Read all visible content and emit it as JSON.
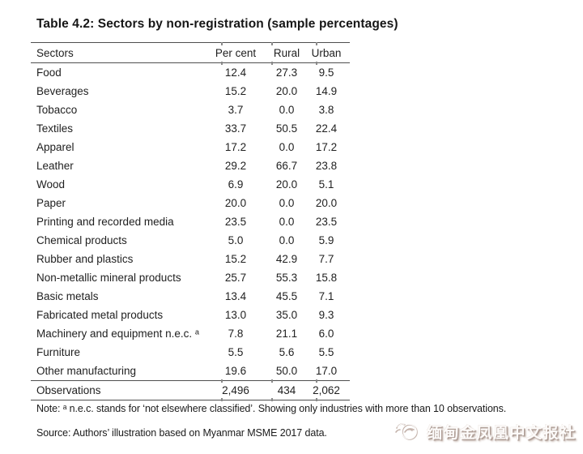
{
  "title": "Table 4.2: Sectors by non-registration (sample percentages)",
  "table": {
    "columns": [
      "Sectors",
      "Per cent",
      "Rural",
      "Urban"
    ],
    "rows": [
      {
        "sector": "Food",
        "per_cent": "12.4",
        "rural": "27.3",
        "urban": "9.5"
      },
      {
        "sector": "Beverages",
        "per_cent": "15.2",
        "rural": "20.0",
        "urban": "14.9"
      },
      {
        "sector": "Tobacco",
        "per_cent": "3.7",
        "rural": "0.0",
        "urban": "3.8"
      },
      {
        "sector": "Textiles",
        "per_cent": "33.7",
        "rural": "50.5",
        "urban": "22.4"
      },
      {
        "sector": "Apparel",
        "per_cent": "17.2",
        "rural": "0.0",
        "urban": "17.2"
      },
      {
        "sector": "Leather",
        "per_cent": "29.2",
        "rural": "66.7",
        "urban": "23.8"
      },
      {
        "sector": "Wood",
        "per_cent": "6.9",
        "rural": "20.0",
        "urban": "5.1"
      },
      {
        "sector": "Paper",
        "per_cent": "20.0",
        "rural": "0.0",
        "urban": "20.0"
      },
      {
        "sector": "Printing and recorded media",
        "per_cent": "23.5",
        "rural": "0.0",
        "urban": "23.5"
      },
      {
        "sector": "Chemical products",
        "per_cent": "5.0",
        "rural": "0.0",
        "urban": "5.9"
      },
      {
        "sector": "Rubber and plastics",
        "per_cent": "15.2",
        "rural": "42.9",
        "urban": "7.7"
      },
      {
        "sector": "Non-metallic mineral products",
        "per_cent": "25.7",
        "rural": "55.3",
        "urban": "15.8"
      },
      {
        "sector": "Basic metals",
        "per_cent": "13.4",
        "rural": "45.5",
        "urban": "7.1"
      },
      {
        "sector": "Fabricated metal products",
        "per_cent": "13.0",
        "rural": "35.0",
        "urban": "9.3"
      },
      {
        "sector": "Machinery and equipment n.e.c. ᵃ",
        "per_cent": "7.8",
        "rural": "21.1",
        "urban": "6.0"
      },
      {
        "sector": "Furniture",
        "per_cent": "5.5",
        "rural": "5.6",
        "urban": "5.5"
      },
      {
        "sector": "Other manufacturing",
        "per_cent": "19.6",
        "rural": "50.0",
        "urban": "17.0"
      }
    ],
    "summary_row": {
      "sector": "Observations",
      "per_cent": "2,496",
      "rural": "434",
      "urban": "2,062"
    }
  },
  "note": "Note: ᵃ n.e.c. stands for ‘not elsewhere classified’. Showing only industries with more than 10 observations.",
  "source": "Source: Authors’ illustration based on Myanmar MSME 2017 data.",
  "watermark": {
    "text": "缅甸金凤凰中文报社",
    "icon": "phoenix-bird-icon"
  },
  "colors": {
    "rule": "#4f4f4f",
    "text": "#1c1c1c",
    "watermark_shadow": "#ab9a92",
    "background": "#ffffff"
  }
}
